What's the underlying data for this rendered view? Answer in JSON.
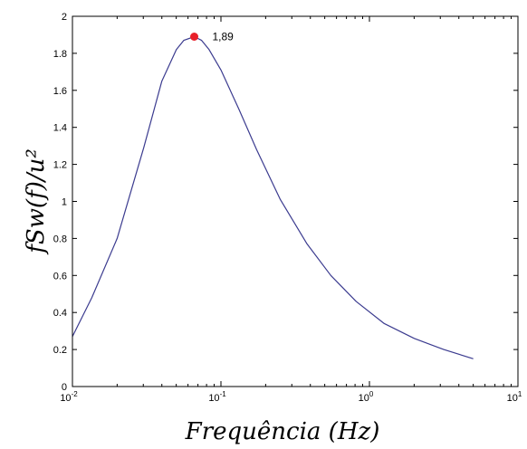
{
  "chart_data": {
    "type": "line",
    "xlabel": "Frequência (Hz)",
    "ylabel": "fSw(f)/u²",
    "x_scale": "log",
    "xlim": [
      0.01,
      10
    ],
    "ylim": [
      0,
      2
    ],
    "x_ticks": [
      {
        "value": 0.01,
        "base": "10",
        "exp": "-2"
      },
      {
        "value": 0.1,
        "base": "10",
        "exp": "-1"
      },
      {
        "value": 1,
        "base": "10",
        "exp": "0"
      },
      {
        "value": 10,
        "base": "10",
        "exp": "1"
      }
    ],
    "y_ticks": [
      "0",
      "0.2",
      "0.4",
      "0.6",
      "0.8",
      "1",
      "1.2",
      "1.4",
      "1.6",
      "1.8",
      "2"
    ],
    "grid": false,
    "line_color": "#3b3b8f",
    "series": [
      {
        "x": [
          0.01,
          0.0135,
          0.02,
          0.0302,
          0.04,
          0.0501,
          0.0562,
          0.0661,
          0.0741,
          0.0832,
          0.1,
          0.1318,
          0.1738,
          0.2512,
          0.3802,
          0.5495,
          0.8128,
          1.2589,
          2.0,
          3.1623,
          5.0
        ],
        "y": [
          0.27,
          0.48,
          0.8,
          1.29,
          1.65,
          1.82,
          1.87,
          1.89,
          1.87,
          1.82,
          1.71,
          1.5,
          1.28,
          1.01,
          0.77,
          0.6,
          0.46,
          0.34,
          0.26,
          0.2,
          0.15
        ]
      }
    ],
    "peak": {
      "x": 0.0661,
      "y": 1.89,
      "label": "1,89",
      "color": "#e8202a"
    }
  }
}
